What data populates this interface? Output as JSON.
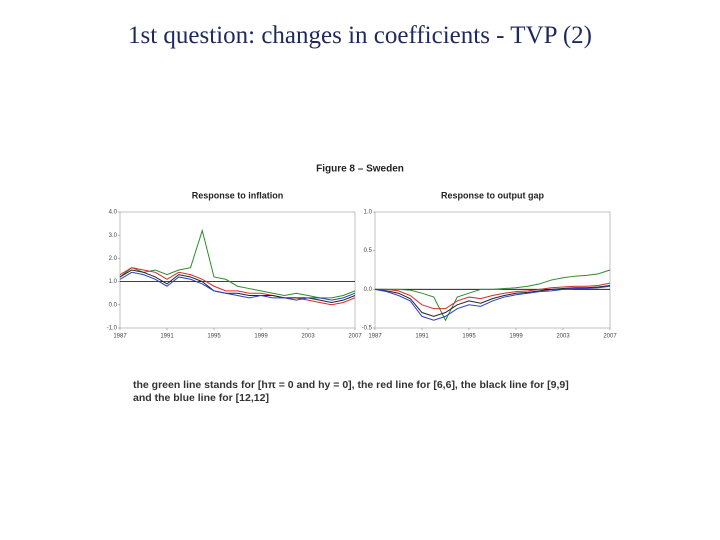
{
  "title": "1st question: changes in coefficients - TVP (2)",
  "figure_title": "Figure 8 – Sweden",
  "caption": "the green line stands for [hπ = 0 and hy = 0], the red line for [6,6], the black line for [9,9] and the blue line for [12,12]",
  "chart_data": [
    {
      "type": "line",
      "title": "Response to inflation",
      "x": [
        1987,
        1988,
        1989,
        1990,
        1991,
        1992,
        1993,
        1994,
        1995,
        1996,
        1997,
        1998,
        1999,
        2000,
        2001,
        2002,
        2003,
        2004,
        2005,
        2006,
        2007
      ],
      "series": [
        {
          "color": "#2e8b2e",
          "values": [
            1.2,
            1.6,
            1.4,
            1.5,
            1.3,
            1.5,
            1.6,
            3.2,
            1.2,
            1.1,
            0.8,
            0.7,
            0.6,
            0.5,
            0.4,
            0.5,
            0.4,
            0.3,
            0.3,
            0.4,
            0.6
          ]
        },
        {
          "color": "#d62a2a",
          "values": [
            1.3,
            1.6,
            1.5,
            1.4,
            1.1,
            1.4,
            1.3,
            1.1,
            0.8,
            0.6,
            0.6,
            0.5,
            0.5,
            0.4,
            0.3,
            0.3,
            0.2,
            0.1,
            0.0,
            0.1,
            0.3
          ]
        },
        {
          "color": "#222222",
          "values": [
            1.2,
            1.5,
            1.4,
            1.2,
            0.9,
            1.3,
            1.2,
            1.0,
            0.6,
            0.5,
            0.5,
            0.4,
            0.4,
            0.4,
            0.3,
            0.3,
            0.3,
            0.2,
            0.1,
            0.2,
            0.4
          ]
        },
        {
          "color": "#2b3fc4",
          "values": [
            1.1,
            1.4,
            1.3,
            1.1,
            0.8,
            1.2,
            1.1,
            0.9,
            0.6,
            0.5,
            0.4,
            0.3,
            0.4,
            0.3,
            0.3,
            0.2,
            0.3,
            0.3,
            0.2,
            0.3,
            0.5
          ]
        }
      ],
      "hline": 1,
      "xlim": [
        1987,
        2007
      ],
      "xticks": [
        1987,
        1991,
        1995,
        1999,
        2003,
        2007
      ],
      "ylim": [
        -1,
        4
      ],
      "yticks": [
        {
          "value": -1,
          "label": "-1.0"
        },
        {
          "value": 0,
          "label": "0.0"
        },
        {
          "value": 1,
          "label": "1.0"
        },
        {
          "value": 2,
          "label": "2.0"
        },
        {
          "value": 3,
          "label": "3.0"
        },
        {
          "value": 4,
          "label": "4.0"
        }
      ]
    },
    {
      "type": "line",
      "title": "Response to output gap",
      "x": [
        1987,
        1988,
        1989,
        1990,
        1991,
        1992,
        1993,
        1994,
        1995,
        1996,
        1997,
        1998,
        1999,
        2000,
        2001,
        2002,
        2003,
        2004,
        2005,
        2006,
        2007
      ],
      "series": [
        {
          "color": "#2e8b2e",
          "values": [
            0,
            0,
            0,
            -0.01,
            -0.05,
            -0.1,
            -0.4,
            -0.1,
            -0.05,
            0,
            0,
            0.01,
            0.02,
            0.04,
            0.07,
            0.12,
            0.15,
            0.17,
            0.18,
            0.2,
            0.25
          ]
        },
        {
          "color": "#d62a2a",
          "values": [
            0,
            0,
            -0.02,
            -0.08,
            -0.2,
            -0.25,
            -0.25,
            -0.15,
            -0.1,
            -0.12,
            -0.08,
            -0.05,
            -0.03,
            -0.02,
            0,
            0.02,
            0.03,
            0.04,
            0.04,
            0.05,
            0.08
          ]
        },
        {
          "color": "#222222",
          "values": [
            0,
            -0.02,
            -0.05,
            -0.12,
            -0.3,
            -0.35,
            -0.3,
            -0.2,
            -0.15,
            -0.18,
            -0.12,
            -0.08,
            -0.05,
            -0.04,
            -0.02,
            0,
            0.01,
            0.02,
            0.02,
            0.03,
            0.05
          ]
        },
        {
          "color": "#2b3fc4",
          "values": [
            0,
            -0.03,
            -0.08,
            -0.15,
            -0.35,
            -0.4,
            -0.35,
            -0.25,
            -0.2,
            -0.22,
            -0.15,
            -0.1,
            -0.07,
            -0.05,
            -0.03,
            -0.02,
            0,
            0.01,
            0.01,
            0.02,
            0.04
          ]
        }
      ],
      "hline": 0,
      "xlim": [
        1987,
        2007
      ],
      "xticks": [
        1987,
        1991,
        1995,
        1999,
        2003,
        2007
      ],
      "ylim": [
        -0.5,
        1
      ],
      "yticks": [
        {
          "value": -0.5,
          "label": "-0.5"
        },
        {
          "value": 0,
          "label": "0.0"
        },
        {
          "value": 0.5,
          "label": "0.5"
        },
        {
          "value": 1,
          "label": "1.0"
        }
      ]
    }
  ]
}
